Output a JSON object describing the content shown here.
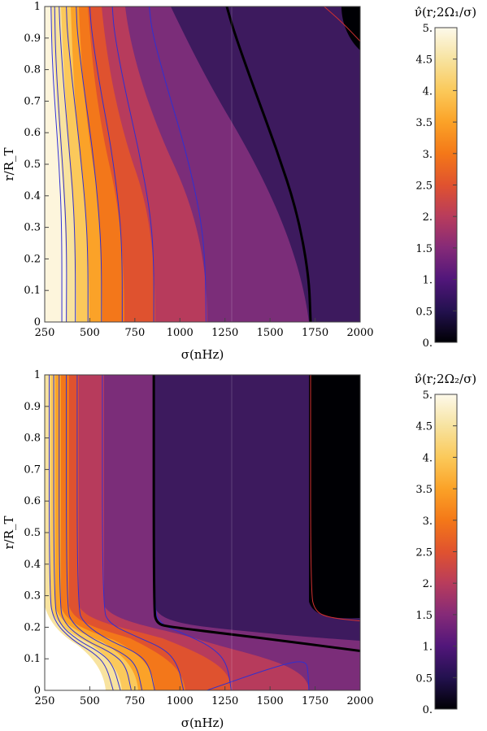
{
  "palette": {
    "levels": [
      {
        "v": 0.0,
        "hex": "#000004"
      },
      {
        "v": 0.5,
        "hex": "#23114f"
      },
      {
        "v": 1.0,
        "hex": "#51167a"
      },
      {
        "v": 1.5,
        "hex": "#852a78"
      },
      {
        "v": 2.0,
        "hex": "#b83c5c"
      },
      {
        "v": 2.5,
        "hex": "#e0522f"
      },
      {
        "v": 3.0,
        "hex": "#f47818"
      },
      {
        "v": 3.5,
        "hex": "#fba227"
      },
      {
        "v": 4.0,
        "hex": "#fbc95a"
      },
      {
        "v": 4.5,
        "hex": "#f7e3a0"
      },
      {
        "v": 5.0,
        "hex": "#fdf9ea"
      }
    ],
    "contour_blue": "#3030d0",
    "contour_red": "#d03030",
    "contour_black": "#000000"
  },
  "chart_data": [
    {
      "type": "contour",
      "panel": "top",
      "xlabel": "σ(nHz)",
      "ylabel": "r/R_T",
      "xlim": [
        250,
        2000
      ],
      "ylim": [
        0,
        1
      ],
      "xticks": [
        "250",
        "500",
        "750",
        "1000",
        "1250",
        "1500",
        "1750",
        "2000"
      ],
      "yticks": [
        "0",
        "0.1",
        "0.2",
        "0.3",
        "0.4",
        "0.5",
        "0.6",
        "0.7",
        "0.8",
        "0.9",
        "1"
      ],
      "colorbar_label": "ν̂(r;2Ω₁/σ)",
      "colorbar_ticks": [
        "0.",
        "0.5",
        "1.",
        "1.5",
        "2.",
        "2.5",
        "3.",
        "3.5",
        "4.",
        "4.5",
        "5."
      ],
      "contours": [
        {
          "level": 5.0,
          "style": "blue",
          "points": [
            [
              345,
              0
            ],
            [
              345,
              0.3
            ],
            [
              330,
              0.5
            ],
            [
              305,
              0.7
            ],
            [
              290,
              0.85
            ],
            [
              285,
              1
            ]
          ]
        },
        {
          "level": 4.5,
          "style": "blue",
          "points": [
            [
              370,
              0
            ],
            [
              372,
              0.25
            ],
            [
              355,
              0.45
            ],
            [
              330,
              0.65
            ],
            [
              310,
              0.85
            ],
            [
              305,
              1
            ]
          ]
        },
        {
          "level": 4.0,
          "style": "blue",
          "points": [
            [
              420,
              0
            ],
            [
              420,
              0.2
            ],
            [
              410,
              0.38
            ],
            [
              385,
              0.55
            ],
            [
              355,
              0.75
            ],
            [
              335,
              0.92
            ],
            [
              330,
              1
            ]
          ]
        },
        {
          "level": 3.5,
          "style": "blue",
          "points": [
            [
              490,
              0
            ],
            [
              490,
              0.2
            ],
            [
              478,
              0.35
            ],
            [
              445,
              0.55
            ],
            [
              405,
              0.75
            ],
            [
              375,
              0.92
            ],
            [
              370,
              1
            ]
          ]
        },
        {
          "level": 3.0,
          "style": "blue",
          "points": [
            [
              565,
              0
            ],
            [
              565,
              0.2
            ],
            [
              550,
              0.35
            ],
            [
              515,
              0.55
            ],
            [
              465,
              0.75
            ],
            [
              430,
              0.92
            ],
            [
              425,
              1
            ]
          ]
        },
        {
          "level": 2.5,
          "style": "blue",
          "points": [
            [
              680,
              0
            ],
            [
              680,
              0.2
            ],
            [
              665,
              0.35
            ],
            [
              620,
              0.55
            ],
            [
              555,
              0.75
            ],
            [
              510,
              0.92
            ],
            [
              500,
              1
            ]
          ]
        },
        {
          "level": 2.0,
          "style": "blue",
          "points": [
            [
              855,
              0
            ],
            [
              855,
              0.2
            ],
            [
              835,
              0.35
            ],
            [
              770,
              0.55
            ],
            [
              690,
              0.75
            ],
            [
              635,
              0.92
            ],
            [
              625,
              1
            ]
          ]
        },
        {
          "level": 1.5,
          "style": "blue",
          "points": [
            [
              1145,
              0
            ],
            [
              1140,
              0.2
            ],
            [
              1110,
              0.35
            ],
            [
              1030,
              0.55
            ],
            [
              925,
              0.75
            ],
            [
              845,
              0.92
            ],
            [
              830,
              1
            ]
          ]
        },
        {
          "level": 1.0,
          "style": "black",
          "points": [
            [
              1725,
              0
            ],
            [
              1715,
              0.15
            ],
            [
              1650,
              0.35
            ],
            [
              1535,
              0.55
            ],
            [
              1405,
              0.75
            ],
            [
              1300,
              0.92
            ],
            [
              1260,
              1
            ]
          ]
        },
        {
          "level": 0.5,
          "style": "red",
          "points": [
            [
              1800,
              1
            ],
            [
              1900,
              0.95
            ],
            [
              2000,
              0.89
            ]
          ]
        }
      ]
    },
    {
      "type": "contour",
      "panel": "bottom",
      "xlabel": "σ(nHz)",
      "ylabel": "r/R_T",
      "xlim": [
        250,
        2000
      ],
      "ylim": [
        0,
        1
      ],
      "xticks": [
        "250",
        "500",
        "750",
        "1000",
        "1250",
        "1500",
        "1750",
        "2000"
      ],
      "yticks": [
        "0",
        "0.1",
        "0.2",
        "0.3",
        "0.4",
        "0.5",
        "0.6",
        "0.7",
        "0.8",
        "0.9",
        "1"
      ],
      "colorbar_label": "ν̂(r;2Ω₂/σ)",
      "colorbar_ticks": [
        "0.",
        "0.5",
        "1.",
        "1.5",
        "2.",
        "2.5",
        "3.",
        "3.5",
        "4.",
        "4.5",
        "5."
      ],
      "contours": [
        {
          "level": 5.0,
          "style": "blue",
          "points": [
            [
              275,
              1
            ],
            [
              275,
              0.3
            ],
            [
              300,
              0.22
            ],
            [
              400,
              0.16
            ],
            [
              520,
              0.12
            ],
            [
              590,
              0.08
            ],
            [
              630,
              0
            ]
          ]
        },
        {
          "level": 4.5,
          "style": "blue",
          "points": [
            [
              300,
              1
            ],
            [
              300,
              0.28
            ],
            [
              330,
              0.21
            ],
            [
              430,
              0.16
            ],
            [
              560,
              0.12
            ],
            [
              630,
              0.08
            ],
            [
              670,
              0
            ]
          ]
        },
        {
          "level": 4.0,
          "style": "blue",
          "points": [
            [
              330,
              1
            ],
            [
              330,
              0.27
            ],
            [
              360,
              0.21
            ],
            [
              470,
              0.16
            ],
            [
              620,
              0.12
            ],
            [
              700,
              0.08
            ],
            [
              730,
              0
            ]
          ]
        },
        {
          "level": 3.5,
          "style": "blue",
          "points": [
            [
              370,
              1
            ],
            [
              370,
              0.26
            ],
            [
              405,
              0.21
            ],
            [
              520,
              0.16
            ],
            [
              680,
              0.12
            ],
            [
              760,
              0.08
            ],
            [
              790,
              0
            ]
          ]
        },
        {
          "level": 3.0,
          "style": "blue",
          "points": [
            [
              430,
              1
            ],
            [
              430,
              0.26
            ],
            [
              470,
              0.21
            ],
            [
              600,
              0.16
            ],
            [
              760,
              0.12
            ],
            [
              830,
              0.08
            ],
            [
              860,
              0
            ]
          ]
        },
        {
          "level": 2.5,
          "style": "blue",
          "points": [
            [
              570,
              1
            ],
            [
              570,
              0.26
            ],
            [
              610,
              0.21
            ],
            [
              760,
              0.17
            ],
            [
              920,
              0.13
            ],
            [
              990,
              0.08
            ],
            [
              1020,
              0
            ]
          ]
        },
        {
          "level": 2.0,
          "style": "blue",
          "points": [
            [
              855,
              1
            ],
            [
              855,
              0.26
            ],
            [
              890,
              0.21
            ],
            [
              1020,
              0.18
            ],
            [
              1170,
              0.14
            ],
            [
              1260,
              0.09
            ],
            [
              1285,
              0
            ]
          ]
        },
        {
          "level": 1.5,
          "style": "blue",
          "points": [
            [
              1150,
              0
            ],
            [
              1500,
              0.07
            ],
            [
              1700,
              0.1
            ],
            [
              1712,
              0.05
            ],
            [
              1715,
              0
            ]
          ]
        },
        {
          "level": 1.0,
          "style": "black",
          "points": [
            [
              855,
              1
            ],
            [
              855,
              0.26
            ],
            [
              870,
              0.21
            ],
            [
              960,
              0.2
            ],
            [
              1250,
              0.18
            ],
            [
              1600,
              0.155
            ],
            [
              2000,
              0.125
            ]
          ]
        },
        {
          "level": 0.5,
          "style": "red",
          "points": [
            [
              1725,
              1
            ],
            [
              1725,
              0.31
            ],
            [
              1750,
              0.25
            ],
            [
              1830,
              0.23
            ],
            [
              2000,
              0.22
            ]
          ]
        }
      ]
    }
  ]
}
